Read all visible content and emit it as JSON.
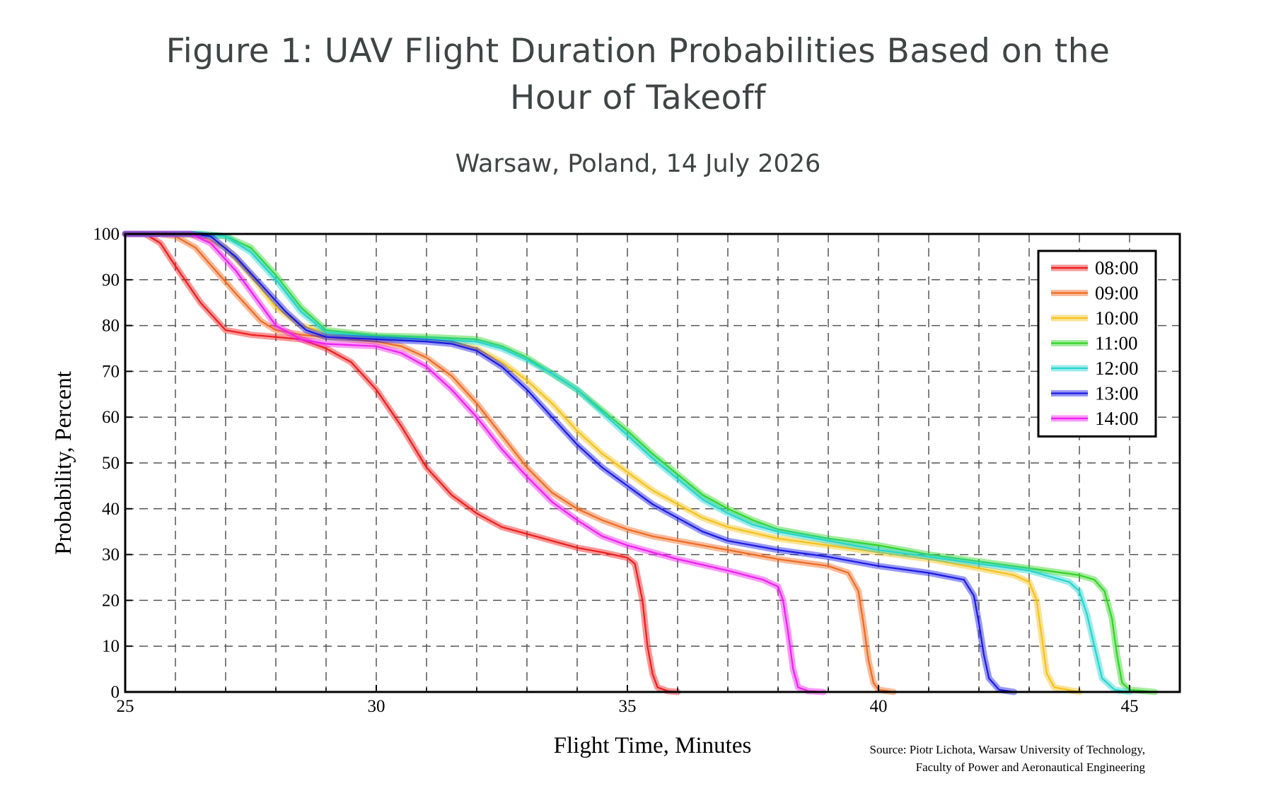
{
  "title_lines": [
    "Figure 1: UAV Flight Duration Probabilities Based on the",
    "Hour of Takeoff"
  ],
  "subtitle": "Warsaw, Poland, 14 July 2026",
  "source_lines": [
    "Source: Piotr Lichota, Warsaw University of Technology,",
    "Faculty of Power and Aeronautical Engineering"
  ],
  "chart_data": {
    "type": "line",
    "title": "Figure 1: UAV Flight Duration Probabilities Based on the Hour of Takeoff",
    "subtitle": "Warsaw, Poland, 14 July 2026",
    "xlabel": "Flight Time, Minutes",
    "ylabel": "Probability, Percent",
    "xlim": [
      25,
      46
    ],
    "ylim": [
      0,
      100
    ],
    "xticks": [
      25,
      30,
      35,
      40,
      45
    ],
    "yticks": [
      0,
      10,
      20,
      30,
      40,
      50,
      60,
      70,
      80,
      90,
      100
    ],
    "grid": "dashed, every 1 minute and every 10 percent",
    "legend_position": "top-right",
    "series": [
      {
        "name": "08:00",
        "color": "#ee1c1c",
        "points": [
          [
            25,
            100
          ],
          [
            25.4,
            100
          ],
          [
            25.7,
            98
          ],
          [
            26,
            93
          ],
          [
            26.5,
            85
          ],
          [
            27,
            79
          ],
          [
            27.5,
            78
          ],
          [
            28,
            77.5
          ],
          [
            28.5,
            77
          ],
          [
            29,
            75
          ],
          [
            29.5,
            72
          ],
          [
            30,
            66
          ],
          [
            30.5,
            58
          ],
          [
            31,
            49
          ],
          [
            31.5,
            43
          ],
          [
            32,
            39
          ],
          [
            32.5,
            36
          ],
          [
            33,
            34.5
          ],
          [
            33.5,
            33
          ],
          [
            34,
            31.5
          ],
          [
            34.5,
            30.5
          ],
          [
            35,
            29.3
          ],
          [
            35.15,
            28
          ],
          [
            35.3,
            20
          ],
          [
            35.4,
            10
          ],
          [
            35.5,
            4
          ],
          [
            35.6,
            1
          ],
          [
            35.8,
            0.2
          ],
          [
            36,
            0
          ]
        ]
      },
      {
        "name": "09:00",
        "color": "#f06a22",
        "points": [
          [
            25,
            100
          ],
          [
            25.7,
            100
          ],
          [
            26,
            99.5
          ],
          [
            26.4,
            97
          ],
          [
            26.8,
            92
          ],
          [
            27.2,
            87
          ],
          [
            27.7,
            81
          ],
          [
            28,
            79
          ],
          [
            28.5,
            78
          ],
          [
            29,
            77.5
          ],
          [
            30,
            76.5
          ],
          [
            30.5,
            75.5
          ],
          [
            31,
            73
          ],
          [
            31.5,
            69
          ],
          [
            32,
            63
          ],
          [
            32.5,
            56
          ],
          [
            33,
            49
          ],
          [
            33.5,
            43.5
          ],
          [
            34,
            40
          ],
          [
            34.5,
            37.5
          ],
          [
            35,
            35.5
          ],
          [
            35.5,
            34
          ],
          [
            36,
            33
          ],
          [
            37,
            31
          ],
          [
            38,
            29
          ],
          [
            39,
            27.5
          ],
          [
            39.4,
            26
          ],
          [
            39.6,
            22
          ],
          [
            39.7,
            15
          ],
          [
            39.8,
            7
          ],
          [
            39.9,
            2
          ],
          [
            40,
            0.5
          ],
          [
            40.3,
            0
          ]
        ]
      },
      {
        "name": "10:00",
        "color": "#f5c21b",
        "points": [
          [
            25,
            100
          ],
          [
            26,
            100
          ],
          [
            26.5,
            99.5
          ],
          [
            27,
            97
          ],
          [
            27.5,
            91
          ],
          [
            28,
            84
          ],
          [
            28.5,
            80
          ],
          [
            29,
            78.5
          ],
          [
            30,
            77.5
          ],
          [
            31,
            77
          ],
          [
            31.5,
            76.5
          ],
          [
            32,
            75
          ],
          [
            32.5,
            72
          ],
          [
            33,
            68
          ],
          [
            33.5,
            63
          ],
          [
            34,
            57
          ],
          [
            34.5,
            52
          ],
          [
            35,
            48
          ],
          [
            35.5,
            44
          ],
          [
            36,
            41
          ],
          [
            36.5,
            38
          ],
          [
            37,
            36
          ],
          [
            38,
            33.5
          ],
          [
            39,
            32
          ],
          [
            40,
            30.5
          ],
          [
            41,
            29
          ],
          [
            42,
            27
          ],
          [
            42.7,
            25.5
          ],
          [
            43,
            24
          ],
          [
            43.15,
            20
          ],
          [
            43.25,
            12
          ],
          [
            43.35,
            4
          ],
          [
            43.5,
            1
          ],
          [
            44,
            0
          ]
        ]
      },
      {
        "name": "11:00",
        "color": "#33d426",
        "points": [
          [
            25,
            100
          ],
          [
            26.5,
            100
          ],
          [
            27,
            99.5
          ],
          [
            27.5,
            97
          ],
          [
            28,
            91
          ],
          [
            28.5,
            84
          ],
          [
            29,
            79
          ],
          [
            30,
            77.8
          ],
          [
            31,
            77.5
          ],
          [
            32,
            77
          ],
          [
            32.5,
            75.5
          ],
          [
            33,
            73
          ],
          [
            33.5,
            69.5
          ],
          [
            34,
            66
          ],
          [
            34.5,
            61.5
          ],
          [
            35,
            57
          ],
          [
            35.5,
            52
          ],
          [
            36,
            47.5
          ],
          [
            36.5,
            43
          ],
          [
            37,
            40
          ],
          [
            37.5,
            37.5
          ],
          [
            38,
            35.5
          ],
          [
            39,
            33.5
          ],
          [
            40,
            32
          ],
          [
            41,
            30
          ],
          [
            42,
            28.5
          ],
          [
            43,
            27
          ],
          [
            44,
            25.5
          ],
          [
            44.3,
            24.5
          ],
          [
            44.5,
            22
          ],
          [
            44.65,
            16
          ],
          [
            44.75,
            8
          ],
          [
            44.85,
            2
          ],
          [
            45,
            0.5
          ],
          [
            45.5,
            0
          ]
        ]
      },
      {
        "name": "12:00",
        "color": "#25d4d0",
        "points": [
          [
            25,
            100
          ],
          [
            26.5,
            100
          ],
          [
            27,
            99.5
          ],
          [
            27.5,
            96
          ],
          [
            28,
            90
          ],
          [
            28.5,
            83
          ],
          [
            29,
            78.5
          ],
          [
            30,
            77.5
          ],
          [
            31,
            77
          ],
          [
            32,
            76.5
          ],
          [
            32.5,
            75
          ],
          [
            33,
            72.5
          ],
          [
            33.5,
            69.5
          ],
          [
            34,
            66
          ],
          [
            34.5,
            61
          ],
          [
            35,
            56
          ],
          [
            35.5,
            51
          ],
          [
            36,
            46.5
          ],
          [
            36.5,
            42
          ],
          [
            37,
            39
          ],
          [
            37.5,
            36.5
          ],
          [
            38,
            35
          ],
          [
            39,
            33
          ],
          [
            40,
            31
          ],
          [
            41,
            29.5
          ],
          [
            42,
            28
          ],
          [
            43,
            26.5
          ],
          [
            43.8,
            24
          ],
          [
            44,
            22
          ],
          [
            44.15,
            17
          ],
          [
            44.3,
            10
          ],
          [
            44.45,
            3
          ],
          [
            44.7,
            0.5
          ],
          [
            45,
            0
          ]
        ]
      },
      {
        "name": "13:00",
        "color": "#1a1ae6",
        "points": [
          [
            25,
            100
          ],
          [
            26.3,
            100
          ],
          [
            26.7,
            99.5
          ],
          [
            27.2,
            95
          ],
          [
            27.7,
            89
          ],
          [
            28.2,
            83
          ],
          [
            28.6,
            79
          ],
          [
            29,
            77.5
          ],
          [
            30,
            77
          ],
          [
            31,
            76.5
          ],
          [
            31.5,
            76
          ],
          [
            32,
            74.5
          ],
          [
            32.5,
            71
          ],
          [
            33,
            66
          ],
          [
            33.5,
            60
          ],
          [
            34,
            54
          ],
          [
            34.5,
            49
          ],
          [
            35,
            45
          ],
          [
            35.5,
            41
          ],
          [
            36,
            38
          ],
          [
            36.5,
            35
          ],
          [
            37,
            33
          ],
          [
            38,
            31
          ],
          [
            39,
            29.5
          ],
          [
            40,
            27.5
          ],
          [
            41,
            26
          ],
          [
            41.7,
            24.5
          ],
          [
            41.9,
            21
          ],
          [
            42,
            15
          ],
          [
            42.1,
            8
          ],
          [
            42.2,
            3
          ],
          [
            42.4,
            0.5
          ],
          [
            42.7,
            0
          ]
        ]
      },
      {
        "name": "14:00",
        "color": "#f01ef0",
        "points": [
          [
            25,
            100
          ],
          [
            26.3,
            100
          ],
          [
            26.7,
            98
          ],
          [
            27.2,
            92
          ],
          [
            27.6,
            86
          ],
          [
            28,
            80
          ],
          [
            28.5,
            77
          ],
          [
            29,
            76
          ],
          [
            30,
            75.5
          ],
          [
            30.5,
            74
          ],
          [
            31,
            71
          ],
          [
            31.5,
            66
          ],
          [
            32,
            60
          ],
          [
            32.5,
            53
          ],
          [
            33,
            47
          ],
          [
            33.5,
            41.5
          ],
          [
            34,
            37.5
          ],
          [
            34.5,
            34
          ],
          [
            35,
            32
          ],
          [
            35.5,
            30.5
          ],
          [
            36,
            29
          ],
          [
            37,
            26.5
          ],
          [
            37.7,
            24.5
          ],
          [
            38,
            23
          ],
          [
            38.1,
            20
          ],
          [
            38.2,
            13
          ],
          [
            38.3,
            5
          ],
          [
            38.4,
            1
          ],
          [
            38.6,
            0.2
          ],
          [
            38.9,
            0
          ]
        ]
      }
    ]
  },
  "axis_ticks_x": [
    "25",
    "30",
    "35",
    "40",
    "45"
  ],
  "axis_ticks_y": [
    "0",
    "10",
    "20",
    "30",
    "40",
    "50",
    "60",
    "70",
    "80",
    "90",
    "100"
  ]
}
